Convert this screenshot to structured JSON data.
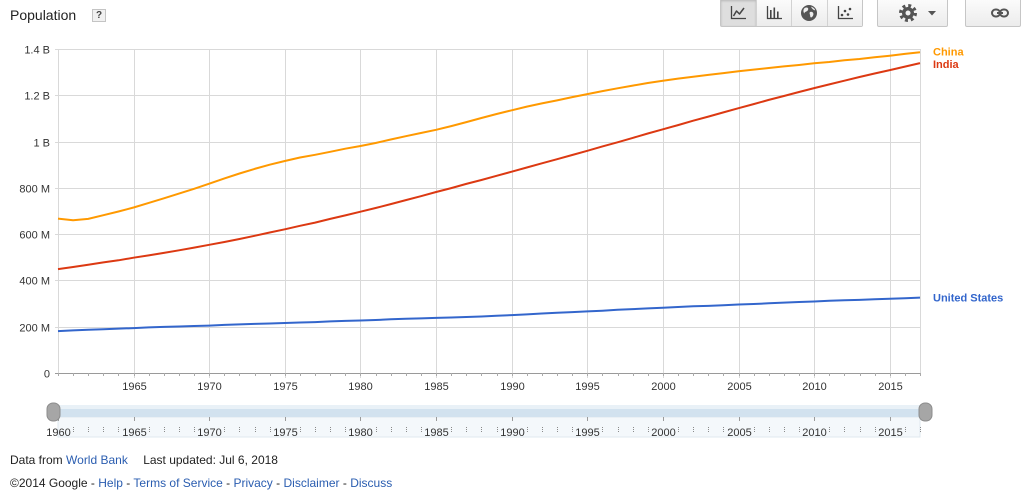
{
  "header": {
    "help_label": "?"
  },
  "toolbar": {
    "chart_types": [
      {
        "icon": "line-chart-icon",
        "selected": true
      },
      {
        "icon": "bar-chart-icon",
        "selected": false
      },
      {
        "icon": "globe-icon",
        "selected": false
      },
      {
        "icon": "scatter-chart-icon",
        "selected": false
      }
    ],
    "settings_icon": "gear-icon",
    "settings_caret_icon": "caret-down-icon",
    "link_icon": "link-icon"
  },
  "chart_data": {
    "type": "line",
    "title": "Population",
    "grid": true,
    "legend": "right",
    "xlim": [
      1960,
      2017
    ],
    "ylim": [
      0,
      1400000000
    ],
    "x_ticks": [
      "1965",
      "1970",
      "1975",
      "1980",
      "1985",
      "1990",
      "1995",
      "2000",
      "2005",
      "2010",
      "2015"
    ],
    "y_ticks": [
      {
        "value": 0,
        "label": "0"
      },
      {
        "value": 200000000,
        "label": "200 M"
      },
      {
        "value": 400000000,
        "label": "400 M"
      },
      {
        "value": 600000000,
        "label": "600 M"
      },
      {
        "value": 800000000,
        "label": "800 M"
      },
      {
        "value": 1000000000,
        "label": "1 B"
      },
      {
        "value": 1200000000,
        "label": "1.2 B"
      },
      {
        "value": 1400000000,
        "label": "1.4 B"
      }
    ],
    "x": [
      1960,
      1961,
      1962,
      1963,
      1964,
      1965,
      1966,
      1967,
      1968,
      1969,
      1970,
      1971,
      1972,
      1973,
      1974,
      1975,
      1976,
      1977,
      1978,
      1979,
      1980,
      1981,
      1982,
      1983,
      1984,
      1985,
      1986,
      1987,
      1988,
      1989,
      1990,
      1991,
      1992,
      1993,
      1994,
      1995,
      1996,
      1997,
      1998,
      1999,
      2000,
      2001,
      2002,
      2003,
      2004,
      2005,
      2006,
      2007,
      2008,
      2009,
      2010,
      2011,
      2012,
      2013,
      2014,
      2015,
      2016,
      2017
    ],
    "series": [
      {
        "name": "China",
        "color": "#ff9900",
        "values": [
          667000000,
          660000000,
          666000000,
          682000000,
          698000000,
          715000000,
          735000000,
          755000000,
          775000000,
          796000000,
          818000000,
          841000000,
          862000000,
          882000000,
          900000000,
          916000000,
          931000000,
          943000000,
          956000000,
          969000000,
          981000000,
          994000000,
          1009000000,
          1023000000,
          1037000000,
          1051000000,
          1067000000,
          1084000000,
          1102000000,
          1119000000,
          1135000000,
          1151000000,
          1165000000,
          1178000000,
          1192000000,
          1205000000,
          1218000000,
          1230000000,
          1242000000,
          1253000000,
          1263000000,
          1272000000,
          1280000000,
          1288000000,
          1296000000,
          1304000000,
          1311000000,
          1318000000,
          1325000000,
          1331000000,
          1338000000,
          1344000000,
          1351000000,
          1357000000,
          1364000000,
          1371000000,
          1379000000,
          1386000000
        ]
      },
      {
        "name": "India",
        "color": "#dc3912",
        "values": [
          449000000,
          458000000,
          468000000,
          478000000,
          487000000,
          498000000,
          508000000,
          519000000,
          530000000,
          542000000,
          554000000,
          566000000,
          579000000,
          593000000,
          607000000,
          621000000,
          636000000,
          650000000,
          666000000,
          681000000,
          697000000,
          713000000,
          730000000,
          747000000,
          764000000,
          782000000,
          799000000,
          817000000,
          834000000,
          852000000,
          870000000,
          888000000,
          906000000,
          924000000,
          942000000,
          960000000,
          979000000,
          997000000,
          1016000000,
          1035000000,
          1053000000,
          1071000000,
          1090000000,
          1108000000,
          1126000000,
          1144000000,
          1162000000,
          1180000000,
          1197000000,
          1214000000,
          1231000000,
          1247000000,
          1263000000,
          1279000000,
          1294000000,
          1309000000,
          1324000000,
          1339000000
        ]
      },
      {
        "name": "United States",
        "color": "#3366cc",
        "values": [
          181000000,
          184000000,
          187000000,
          189000000,
          192000000,
          194000000,
          197000000,
          199000000,
          201000000,
          203000000,
          205000000,
          208000000,
          210000000,
          212000000,
          214000000,
          216000000,
          218000000,
          220000000,
          223000000,
          225000000,
          227000000,
          229000000,
          232000000,
          234000000,
          236000000,
          238000000,
          240000000,
          242000000,
          244000000,
          247000000,
          250000000,
          253000000,
          257000000,
          260000000,
          263000000,
          266000000,
          269000000,
          273000000,
          276000000,
          279000000,
          282000000,
          285000000,
          288000000,
          290000000,
          293000000,
          296000000,
          298000000,
          301000000,
          304000000,
          307000000,
          309000000,
          312000000,
          314000000,
          316000000,
          319000000,
          321000000,
          323000000,
          326000000
        ]
      }
    ]
  },
  "timeline": {
    "range": [
      1960,
      2017
    ],
    "selected_range": [
      1960,
      2017
    ],
    "tick_labels": [
      "1960",
      "1965",
      "1970",
      "1975",
      "1980",
      "1985",
      "1990",
      "1995",
      "2000",
      "2005",
      "2010",
      "2015"
    ]
  },
  "footer": {
    "source_prefix": "Data from",
    "source_link": "World Bank",
    "last_updated": "Last updated: Jul 6, 2018",
    "copyright": "©2014 Google",
    "separator": "-",
    "links": [
      "Help",
      "Terms of Service",
      "Privacy",
      "Disclaimer",
      "Discuss"
    ]
  }
}
